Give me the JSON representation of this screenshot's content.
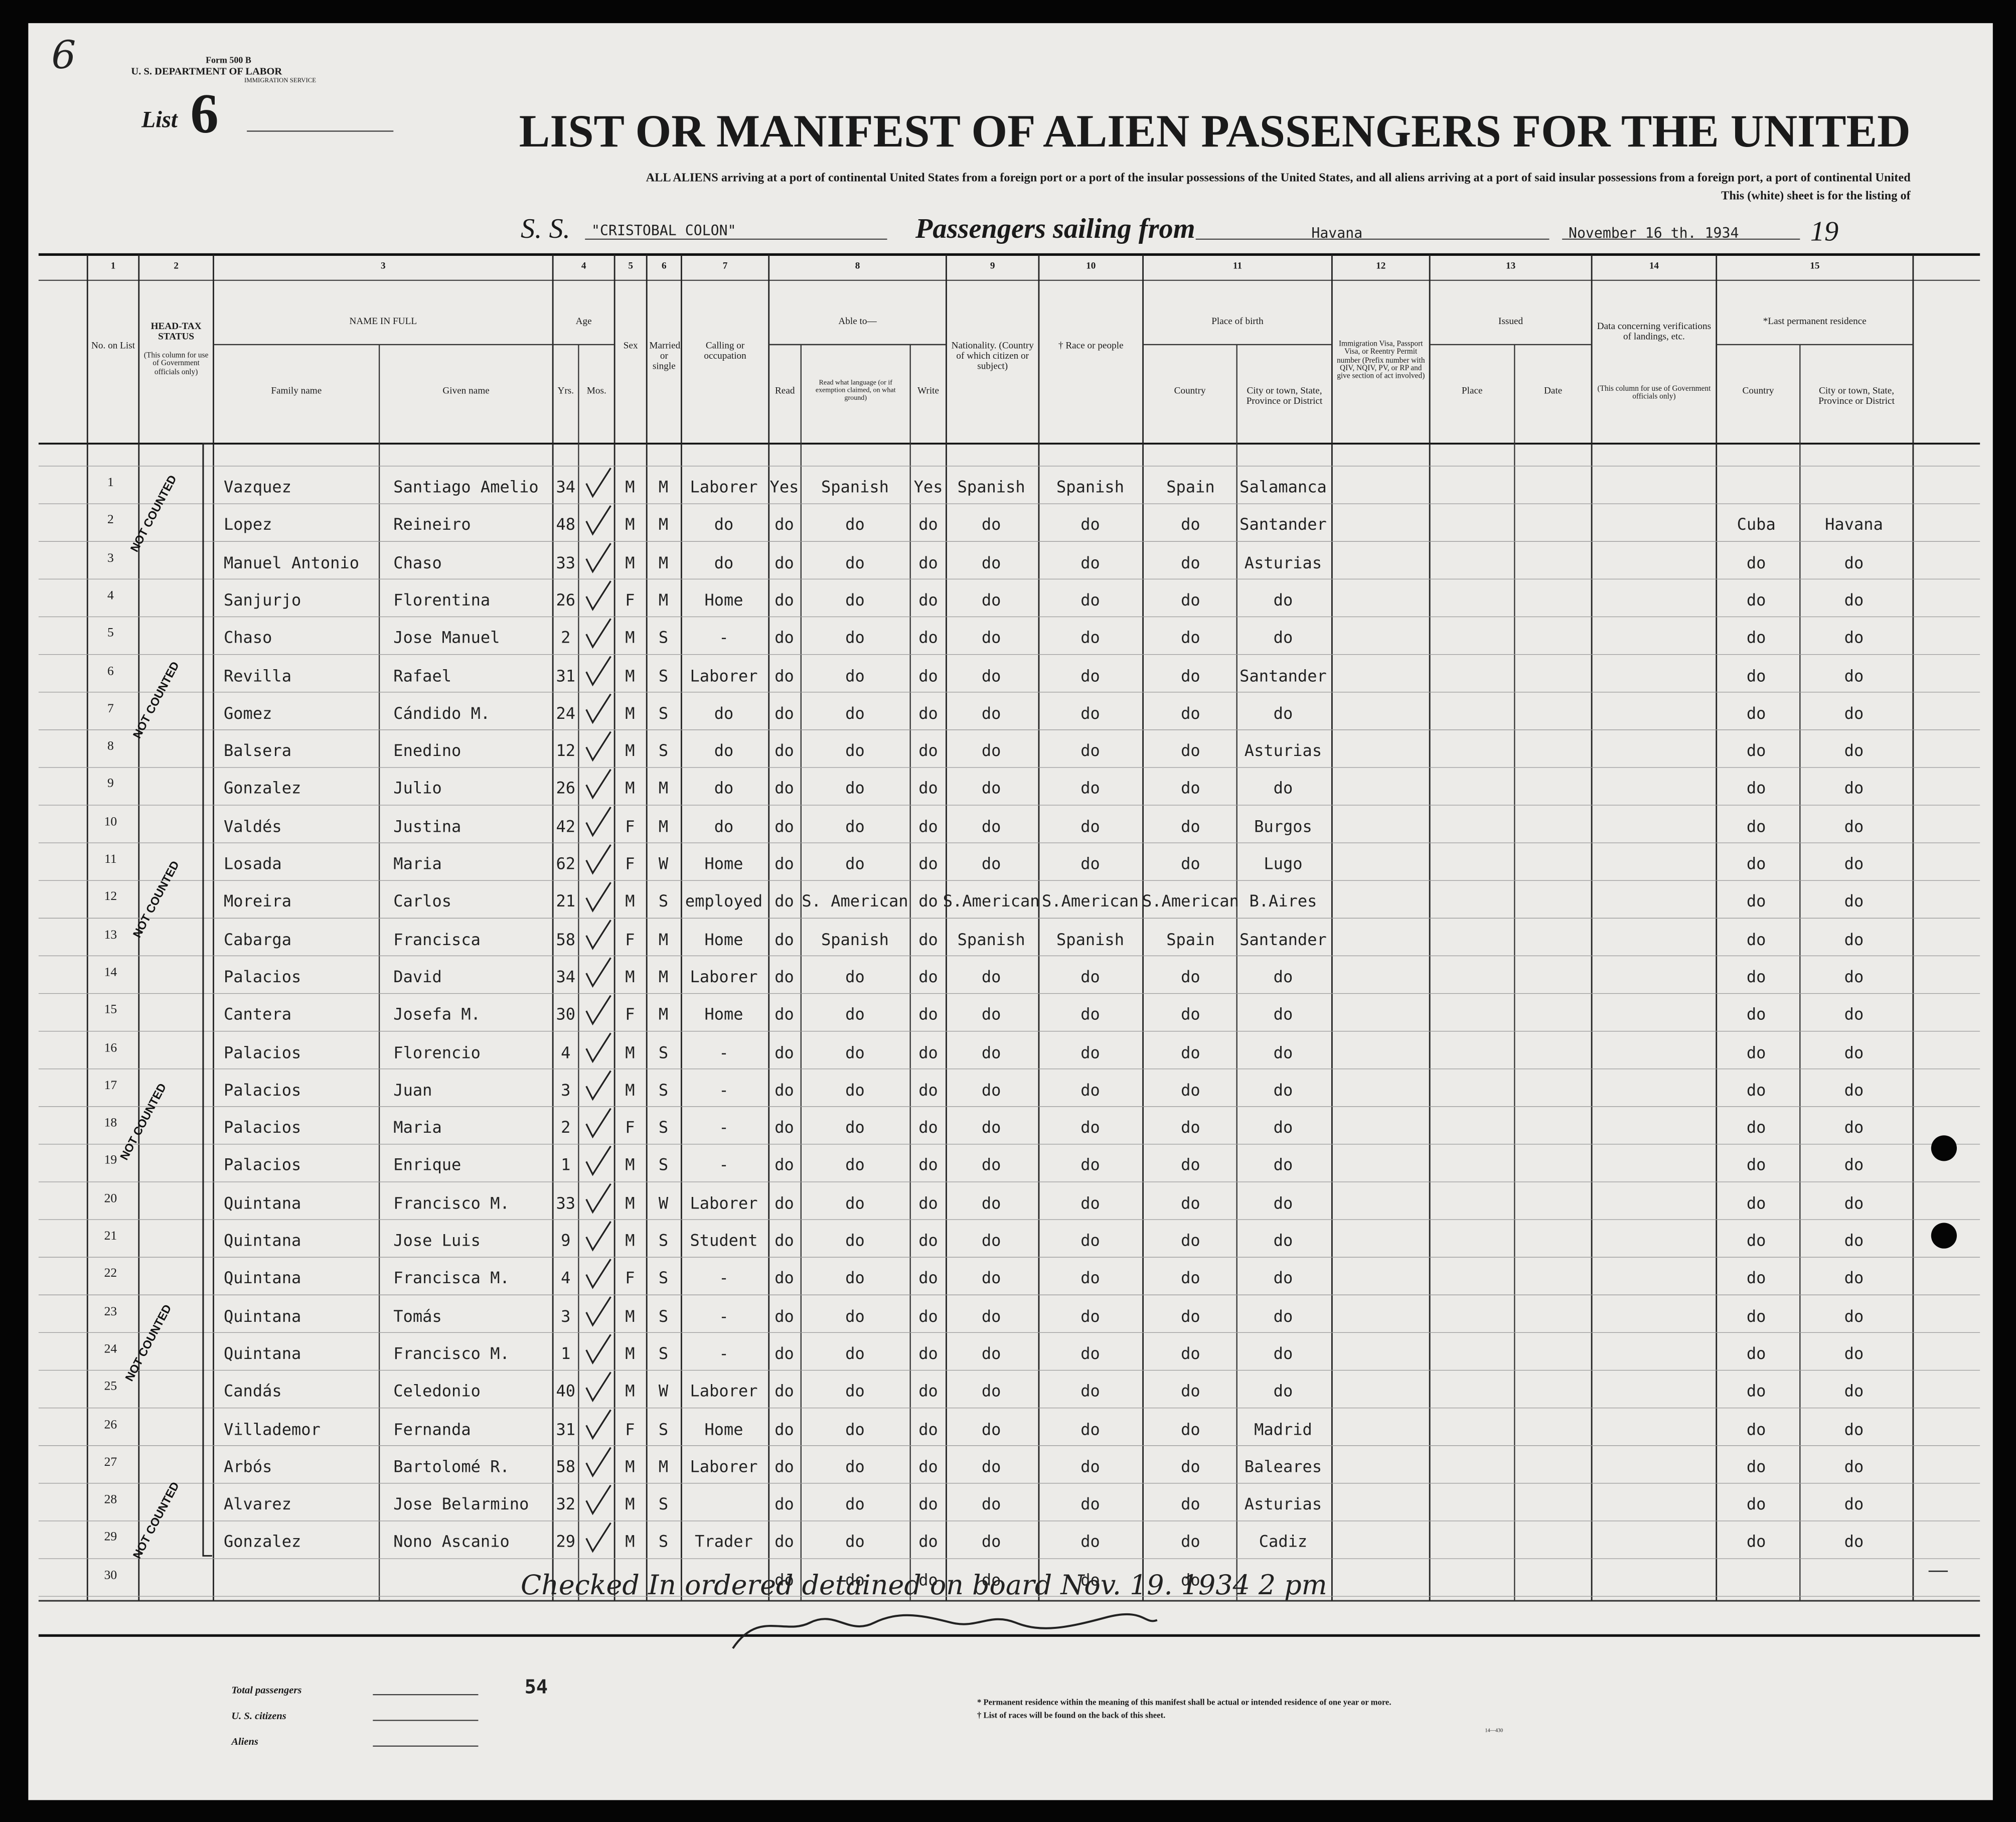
{
  "form": {
    "corner_mark": "6",
    "number": "Form 500 B",
    "department": "U. S. DEPARTMENT OF LABOR",
    "service": "IMMIGRATION SERVICE",
    "list_label": "List",
    "list_number": "6"
  },
  "header": {
    "title": "LIST OR MANIFEST OF ALIEN PASSENGERS FOR THE UNITED",
    "instructions_1": "ALL ALIENS arriving at a port of continental United States from a foreign port or a port of the insular possessions of the United States, and all aliens arriving at a port of said insular possessions from a foreign port, a port of continental United",
    "instructions_2": "This (white) sheet is for the listing of",
    "ship_label": "S. S.",
    "ship_name": "\"CRISTOBAL COLON\"",
    "sailing_label": "Passengers sailing from",
    "port": "Havana",
    "date": "November 16 th. 1934",
    "year_label": "19"
  },
  "columns": [
    {
      "number": "1",
      "title": "No. on List"
    },
    {
      "number": "2",
      "title": "HEAD-TAX STATUS",
      "note": "(This column for use of Government officials only)"
    },
    {
      "number": "3",
      "title": "NAME IN FULL",
      "sub": [
        "Family name",
        "Given name"
      ]
    },
    {
      "number": "4",
      "title": "Age",
      "sub": [
        "Yrs.",
        "Mos."
      ]
    },
    {
      "number": "5",
      "title": "Sex"
    },
    {
      "number": "6",
      "title": "Married or single"
    },
    {
      "number": "7",
      "title": "Calling or occupation"
    },
    {
      "number": "8",
      "title": "Able to—",
      "sub": [
        "Read",
        "Read what language (or if exemption claimed, on what ground)",
        "Write"
      ]
    },
    {
      "number": "9",
      "title": "Nationality. (Country of which citizen or subject)"
    },
    {
      "number": "10",
      "title": "† Race or people"
    },
    {
      "number": "11",
      "title": "Place of birth",
      "sub": [
        "Country",
        "City or town, State, Province or District"
      ]
    },
    {
      "number": "12",
      "title": "Immigration Visa, Passport Visa, or Reentry Permit number (Prefix number with QIV, NQIV, PV, or RP and give section of act involved)"
    },
    {
      "number": "13",
      "title": "Issued",
      "sub": [
        "Place",
        "Date"
      ]
    },
    {
      "number": "14",
      "title": "Data concerning verifications of landings, etc.",
      "note": "(This column for use of Government officials only)"
    },
    {
      "number": "15",
      "title": "*Last permanent residence",
      "sub": [
        "Country",
        "City or town, State, Province or District"
      ]
    }
  ],
  "table": {
    "rows": [
      {
        "no": "1",
        "family": "Vazquez",
        "given": "Santiago Amelio",
        "yrs": "34",
        "sex": "M",
        "status": "M",
        "occupation": "Laborer",
        "read": "Yes",
        "language": "Spanish",
        "write": "Yes",
        "nationality": "Spanish",
        "race": "Spanish",
        "birth_country": "Spain",
        "birth_city": "Salamanca"
      },
      {
        "no": "2",
        "family": "Lopez",
        "given": "Reineiro",
        "yrs": "48",
        "sex": "M",
        "status": "M",
        "occupation": "do",
        "read": "do",
        "language": "do",
        "write": "do",
        "nationality": "do",
        "race": "do",
        "birth_country": "do",
        "birth_city": "Santander",
        "res_country": "Cuba",
        "res_city": "Havana"
      },
      {
        "no": "3",
        "family": "Manuel Antonio",
        "given": "Chaso",
        "yrs": "33",
        "sex": "M",
        "status": "M",
        "occupation": "do",
        "read": "do",
        "language": "do",
        "write": "do",
        "nationality": "do",
        "race": "do",
        "birth_country": "do",
        "birth_city": "Asturias",
        "res_country": "do",
        "res_city": "do"
      },
      {
        "no": "4",
        "family": "Sanjurjo",
        "given": "Florentina",
        "yrs": "26",
        "sex": "F",
        "status": "M",
        "occupation": "Home",
        "read": "do",
        "language": "do",
        "write": "do",
        "nationality": "do",
        "race": "do",
        "birth_country": "do",
        "birth_city": "do",
        "res_country": "do",
        "res_city": "do"
      },
      {
        "no": "5",
        "family": "Chaso",
        "given": "Jose Manuel",
        "yrs": "2",
        "sex": "M",
        "status": "S",
        "occupation": "-",
        "read": "do",
        "language": "do",
        "write": "do",
        "nationality": "do",
        "race": "do",
        "birth_country": "do",
        "birth_city": "do",
        "res_country": "do",
        "res_city": "do"
      },
      {
        "no": "6",
        "family": "Revilla",
        "given": "Rafael",
        "yrs": "31",
        "sex": "M",
        "status": "S",
        "occupation": "Laborer",
        "read": "do",
        "language": "do",
        "write": "do",
        "nationality": "do",
        "race": "do",
        "birth_country": "do",
        "birth_city": "Santander",
        "res_country": "do",
        "res_city": "do"
      },
      {
        "no": "7",
        "family": "Gomez",
        "given": "Cándido M.",
        "yrs": "24",
        "sex": "M",
        "status": "S",
        "occupation": "do",
        "read": "do",
        "language": "do",
        "write": "do",
        "nationality": "do",
        "race": "do",
        "birth_country": "do",
        "birth_city": "do",
        "res_country": "do",
        "res_city": "do"
      },
      {
        "no": "8",
        "family": "Balsera",
        "given": "Enedino",
        "yrs": "12",
        "sex": "M",
        "status": "S",
        "occupation": "do",
        "read": "do",
        "language": "do",
        "write": "do",
        "nationality": "do",
        "race": "do",
        "birth_country": "do",
        "birth_city": "Asturias",
        "res_country": "do",
        "res_city": "do"
      },
      {
        "no": "9",
        "family": "Gonzalez",
        "given": "Julio",
        "yrs": "26",
        "sex": "M",
        "status": "M",
        "occupation": "do",
        "read": "do",
        "language": "do",
        "write": "do",
        "nationality": "do",
        "race": "do",
        "birth_country": "do",
        "birth_city": "do",
        "res_country": "do",
        "res_city": "do"
      },
      {
        "no": "10",
        "family": "Valdés",
        "given": "Justina",
        "yrs": "42",
        "sex": "F",
        "status": "M",
        "occupation": "do",
        "read": "do",
        "language": "do",
        "write": "do",
        "nationality": "do",
        "race": "do",
        "birth_country": "do",
        "birth_city": "Burgos",
        "res_country": "do",
        "res_city": "do"
      },
      {
        "no": "11",
        "family": "Losada",
        "given": "Maria",
        "yrs": "62",
        "sex": "F",
        "status": "W",
        "occupation": "Home",
        "read": "do",
        "language": "do",
        "write": "do",
        "nationality": "do",
        "race": "do",
        "birth_country": "do",
        "birth_city": "Lugo",
        "res_country": "do",
        "res_city": "do"
      },
      {
        "no": "12",
        "family": "Moreira",
        "given": "Carlos",
        "yrs": "21",
        "sex": "M",
        "status": "S",
        "occupation": "employed",
        "read": "do",
        "language": "S. American",
        "write": "do",
        "nationality": "S.American",
        "race": "S.American",
        "birth_country": "S.American",
        "birth_city": "B.Aires",
        "res_country": "do",
        "res_city": "do"
      },
      {
        "no": "13",
        "family": "Cabarga",
        "given": "Francisca",
        "yrs": "58",
        "sex": "F",
        "status": "M",
        "occupation": "Home",
        "read": "do",
        "language": "Spanish",
        "write": "do",
        "nationality": "Spanish",
        "race": "Spanish",
        "birth_country": "Spain",
        "birth_city": "Santander",
        "res_country": "do",
        "res_city": "do"
      },
      {
        "no": "14",
        "family": "Palacios",
        "given": "David",
        "yrs": "34",
        "sex": "M",
        "status": "M",
        "occupation": "Laborer",
        "read": "do",
        "language": "do",
        "write": "do",
        "nationality": "do",
        "race": "do",
        "birth_country": "do",
        "birth_city": "do",
        "res_country": "do",
        "res_city": "do"
      },
      {
        "no": "15",
        "family": "Cantera",
        "given": "Josefa M.",
        "yrs": "30",
        "sex": "F",
        "status": "M",
        "occupation": "Home",
        "read": "do",
        "language": "do",
        "write": "do",
        "nationality": "do",
        "race": "do",
        "birth_country": "do",
        "birth_city": "do",
        "res_country": "do",
        "res_city": "do"
      },
      {
        "no": "16",
        "family": "Palacios",
        "given": "Florencio",
        "yrs": "4",
        "sex": "M",
        "status": "S",
        "occupation": "-",
        "read": "do",
        "language": "do",
        "write": "do",
        "nationality": "do",
        "race": "do",
        "birth_country": "do",
        "birth_city": "do",
        "res_country": "do",
        "res_city": "do"
      },
      {
        "no": "17",
        "family": "Palacios",
        "given": "Juan",
        "yrs": "3",
        "sex": "M",
        "status": "S",
        "occupation": "-",
        "read": "do",
        "language": "do",
        "write": "do",
        "nationality": "do",
        "race": "do",
        "birth_country": "do",
        "birth_city": "do",
        "res_country": "do",
        "res_city": "do"
      },
      {
        "no": "18",
        "family": "Palacios",
        "given": "Maria",
        "yrs": "2",
        "sex": "F",
        "status": "S",
        "occupation": "-",
        "read": "do",
        "language": "do",
        "write": "do",
        "nationality": "do",
        "race": "do",
        "birth_country": "do",
        "birth_city": "do",
        "res_country": "do",
        "res_city": "do"
      },
      {
        "no": "19",
        "family": "Palacios",
        "given": "Enrique",
        "yrs": "1",
        "sex": "M",
        "status": "S",
        "occupation": "-",
        "read": "do",
        "language": "do",
        "write": "do",
        "nationality": "do",
        "race": "do",
        "birth_country": "do",
        "birth_city": "do",
        "res_country": "do",
        "res_city": "do"
      },
      {
        "no": "20",
        "family": "Quintana",
        "given": "Francisco M.",
        "yrs": "33",
        "sex": "M",
        "status": "W",
        "occupation": "Laborer",
        "read": "do",
        "language": "do",
        "write": "do",
        "nationality": "do",
        "race": "do",
        "birth_country": "do",
        "birth_city": "do",
        "res_country": "do",
        "res_city": "do"
      },
      {
        "no": "21",
        "family": "Quintana",
        "given": "Jose Luis",
        "yrs": "9",
        "sex": "M",
        "status": "S",
        "occupation": "Student",
        "read": "do",
        "language": "do",
        "write": "do",
        "nationality": "do",
        "race": "do",
        "birth_country": "do",
        "birth_city": "do",
        "res_country": "do",
        "res_city": "do"
      },
      {
        "no": "22",
        "family": "Quintana",
        "given": "Francisca M.",
        "yrs": "4",
        "sex": "F",
        "status": "S",
        "occupation": "-",
        "read": "do",
        "language": "do",
        "write": "do",
        "nationality": "do",
        "race": "do",
        "birth_country": "do",
        "birth_city": "do",
        "res_country": "do",
        "res_city": "do"
      },
      {
        "no": "23",
        "family": "Quintana",
        "given": "Tomás",
        "yrs": "3",
        "sex": "M",
        "status": "S",
        "occupation": "-",
        "read": "do",
        "language": "do",
        "write": "do",
        "nationality": "do",
        "race": "do",
        "birth_country": "do",
        "birth_city": "do",
        "res_country": "do",
        "res_city": "do"
      },
      {
        "no": "24",
        "family": "Quintana",
        "given": "Francisco M.",
        "yrs": "1",
        "sex": "M",
        "status": "S",
        "occupation": "-",
        "read": "do",
        "language": "do",
        "write": "do",
        "nationality": "do",
        "race": "do",
        "birth_country": "do",
        "birth_city": "do",
        "res_country": "do",
        "res_city": "do"
      },
      {
        "no": "25",
        "family": "Candás",
        "given": "Celedonio",
        "yrs": "40",
        "sex": "M",
        "status": "W",
        "occupation": "Laborer",
        "read": "do",
        "language": "do",
        "write": "do",
        "nationality": "do",
        "race": "do",
        "birth_country": "do",
        "birth_city": "do",
        "res_country": "do",
        "res_city": "do"
      },
      {
        "no": "26",
        "family": "Villademor",
        "given": "Fernanda",
        "yrs": "31",
        "sex": "F",
        "status": "S",
        "occupation": "Home",
        "read": "do",
        "language": "do",
        "write": "do",
        "nationality": "do",
        "race": "do",
        "birth_country": "do",
        "birth_city": "Madrid",
        "res_country": "do",
        "res_city": "do"
      },
      {
        "no": "27",
        "family": "Arbós",
        "given": "Bartolomé R.",
        "yrs": "58",
        "sex": "M",
        "status": "M",
        "occupation": "Laborer",
        "read": "do",
        "language": "do",
        "write": "do",
        "nationality": "do",
        "race": "do",
        "birth_country": "do",
        "birth_city": "Baleares",
        "res_country": "do",
        "res_city": "do"
      },
      {
        "no": "28",
        "family": "Alvarez",
        "given": "Jose Belarmino",
        "yrs": "32",
        "sex": "M",
        "status": "S",
        "read": "do",
        "language": "do",
        "write": "do",
        "nationality": "do",
        "race": "do",
        "birth_country": "do",
        "birth_city": "Asturias",
        "res_country": "do",
        "res_city": "do"
      },
      {
        "no": "29",
        "family": "Gonzalez",
        "given": "Nono Ascanio",
        "yrs": "29",
        "sex": "M",
        "status": "S",
        "occupation": "Trader",
        "read": "do",
        "language": "do",
        "write": "do",
        "nationality": "do",
        "race": "do",
        "birth_country": "do",
        "birth_city": "Cadiz",
        "res_country": "do",
        "res_city": "do"
      },
      {
        "no": "30",
        "read": "do",
        "language": "do",
        "write": "do",
        "nationality": "do",
        "race": "do",
        "birth_country": "do"
      }
    ]
  },
  "stamps": [
    "NOT COUNTED",
    "NOT COUNTED",
    "NOT COUNTED",
    "NOT COUNTED",
    "NOT COUNTED",
    "NOT COUNTED"
  ],
  "annotation": "Checked In ordered detained on board Nov. 19. 1934 2 pm",
  "footer": {
    "total_label": "Total passengers",
    "total_value": "54",
    "citizens_label": "U. S. citizens",
    "aliens_label": "Aliens",
    "note_1": "* Permanent residence within the meaning of this manifest shall be actual or intended residence of one year or more.",
    "note_2": "† List of races will be found on the back of this sheet.",
    "form_code": "14—430"
  }
}
